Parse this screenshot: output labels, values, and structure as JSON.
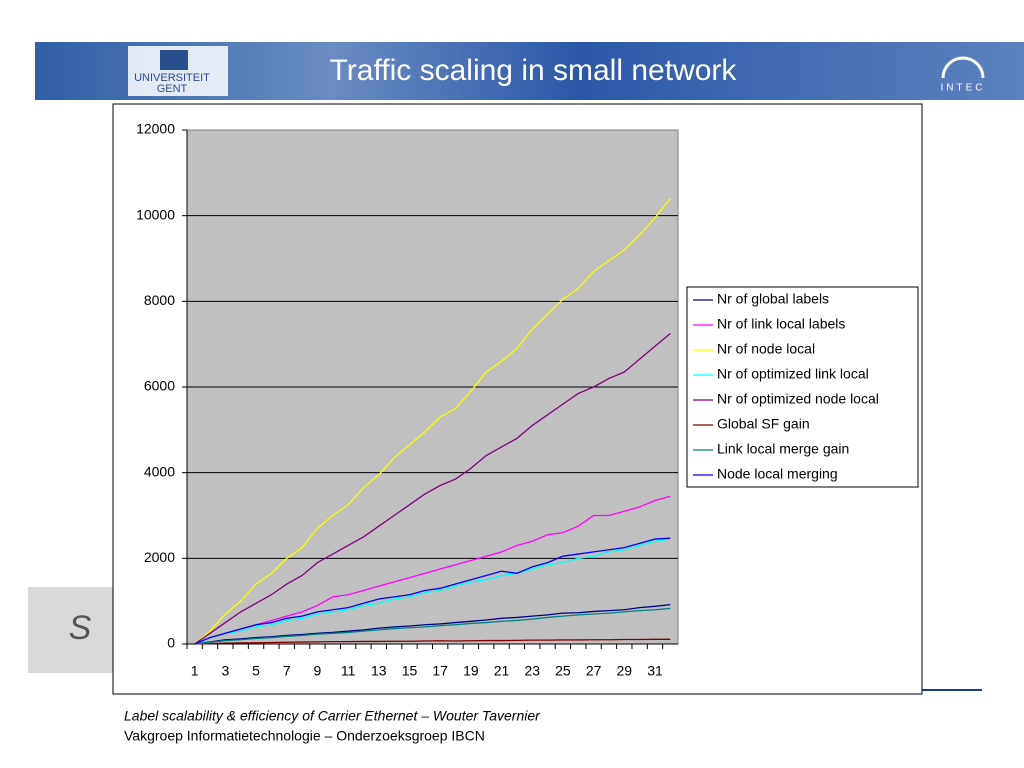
{
  "slide": {
    "logo_line1": "UNIVERSITEIT",
    "logo_line2": "GENT",
    "institute": "INTEC",
    "side_letter": "S",
    "footer_line1": "Label scalability & efficiency of Carrier Ethernet  – Wouter Tavernier",
    "footer_line2": "Vakgroep Informatietechnologie – Onderzoeksgroep IBCN"
  },
  "chart_data": {
    "type": "line",
    "title": "Traffic scaling in small network",
    "categories": [
      1,
      null,
      3,
      null,
      5,
      null,
      7,
      null,
      9,
      null,
      11,
      null,
      13,
      null,
      15,
      null,
      17,
      null,
      19,
      null,
      21,
      null,
      23,
      null,
      25,
      null,
      27,
      null,
      29,
      null,
      31,
      null
    ],
    "ylim": [
      0,
      12000
    ],
    "yticks": [
      0,
      2000,
      4000,
      6000,
      8000,
      10000,
      12000
    ],
    "grid": true,
    "legend": "right",
    "series": [
      {
        "name": "Nr of global labels",
        "color": "#000080",
        "values": [
          0,
          50,
          100,
          120,
          150,
          170,
          200,
          220,
          250,
          270,
          300,
          330,
          370,
          400,
          420,
          450,
          470,
          500,
          530,
          560,
          600,
          620,
          650,
          680,
          720,
          730,
          760,
          780,
          800,
          850,
          880,
          920
        ]
      },
      {
        "name": "Nr of link local labels",
        "color": "#ff00ff",
        "values": [
          0,
          150,
          250,
          350,
          450,
          550,
          650,
          750,
          900,
          1100,
          1150,
          1250,
          1350,
          1450,
          1550,
          1650,
          1750,
          1850,
          1950,
          2050,
          2150,
          2300,
          2400,
          2550,
          2600,
          2750,
          3000,
          3000,
          3100,
          3200,
          3350,
          3450
        ]
      },
      {
        "name": "Nr of node local",
        "color": "#ffff00",
        "values": [
          0,
          300,
          700,
          1000,
          1400,
          1650,
          2000,
          2250,
          2700,
          3000,
          3250,
          3650,
          3950,
          4350,
          4650,
          4950,
          5300,
          5500,
          5900,
          6350,
          6600,
          6900,
          7350,
          7700,
          8050,
          8300,
          8700,
          8950,
          9200,
          9550,
          9950,
          10400
        ]
      },
      {
        "name": "Nr of optimized link local",
        "color": "#00ffff",
        "values": [
          0,
          150,
          250,
          300,
          400,
          450,
          550,
          600,
          700,
          750,
          800,
          900,
          950,
          1050,
          1100,
          1200,
          1250,
          1350,
          1450,
          1500,
          1600,
          1650,
          1750,
          1850,
          1900,
          2000,
          2050,
          2150,
          2200,
          2300,
          2400,
          2450
        ]
      },
      {
        "name": "Nr of optimized node local",
        "color": "#800080",
        "values": [
          0,
          250,
          500,
          750,
          950,
          1150,
          1400,
          1600,
          1900,
          2100,
          2300,
          2500,
          2750,
          3000,
          3250,
          3500,
          3700,
          3850,
          4100,
          4400,
          4600,
          4800,
          5100,
          5350,
          5600,
          5850,
          6000,
          6200,
          6350,
          6650,
          6950,
          7250
        ]
      },
      {
        "name": "Global SF gain",
        "color": "#800000",
        "values": [
          0,
          10,
          20,
          25,
          30,
          35,
          40,
          45,
          50,
          55,
          55,
          60,
          60,
          65,
          65,
          70,
          75,
          70,
          75,
          80,
          80,
          85,
          90,
          90,
          95,
          95,
          100,
          100,
          105,
          105,
          110,
          110
        ]
      },
      {
        "name": "Link local merge gain",
        "color": "#008080",
        "values": [
          0,
          40,
          80,
          100,
          130,
          150,
          180,
          200,
          230,
          250,
          270,
          300,
          330,
          360,
          380,
          400,
          430,
          450,
          480,
          500,
          530,
          550,
          580,
          620,
          650,
          680,
          700,
          720,
          750,
          780,
          800,
          830
        ]
      },
      {
        "name": "Node local merging",
        "color": "#0000ff",
        "values": [
          0,
          150,
          250,
          350,
          450,
          500,
          600,
          650,
          750,
          800,
          850,
          950,
          1050,
          1100,
          1150,
          1250,
          1300,
          1400,
          1500,
          1600,
          1700,
          1650,
          1800,
          1900,
          2050,
          2100,
          2150,
          2200,
          2250,
          2350,
          2450,
          2470
        ]
      }
    ]
  }
}
